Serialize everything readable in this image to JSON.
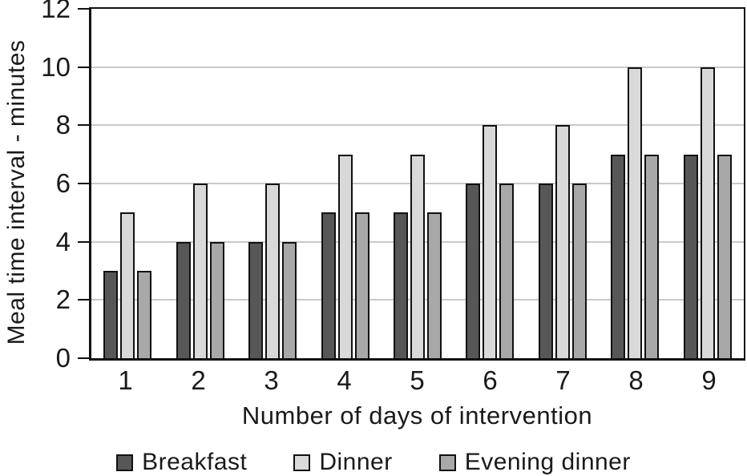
{
  "chart_data": {
    "type": "bar",
    "title": "",
    "xlabel": "Number of days of intervention",
    "ylabel": "Meal time interval - minutes",
    "categories": [
      "1",
      "2",
      "3",
      "4",
      "5",
      "6",
      "7",
      "8",
      "9"
    ],
    "series": [
      {
        "name": "Breakfast",
        "color": "#575757",
        "values": [
          3,
          4,
          4,
          5,
          5,
          6,
          6,
          7,
          7
        ]
      },
      {
        "name": "Dinner",
        "color": "#d9d9d9",
        "values": [
          5,
          6,
          6,
          7,
          7,
          8,
          8,
          10,
          10
        ]
      },
      {
        "name": "Evening dinner",
        "color": "#a8a8a8",
        "values": [
          3,
          4,
          4,
          5,
          5,
          6,
          6,
          7,
          7
        ]
      }
    ],
    "ylim": [
      0,
      12
    ],
    "yticks": [
      0,
      2,
      4,
      6,
      8,
      10,
      12
    ],
    "grid": "horizontal",
    "gridline_color": "#c9c9c9",
    "bar_outline_color": "#111111",
    "legend_position": "bottom"
  }
}
